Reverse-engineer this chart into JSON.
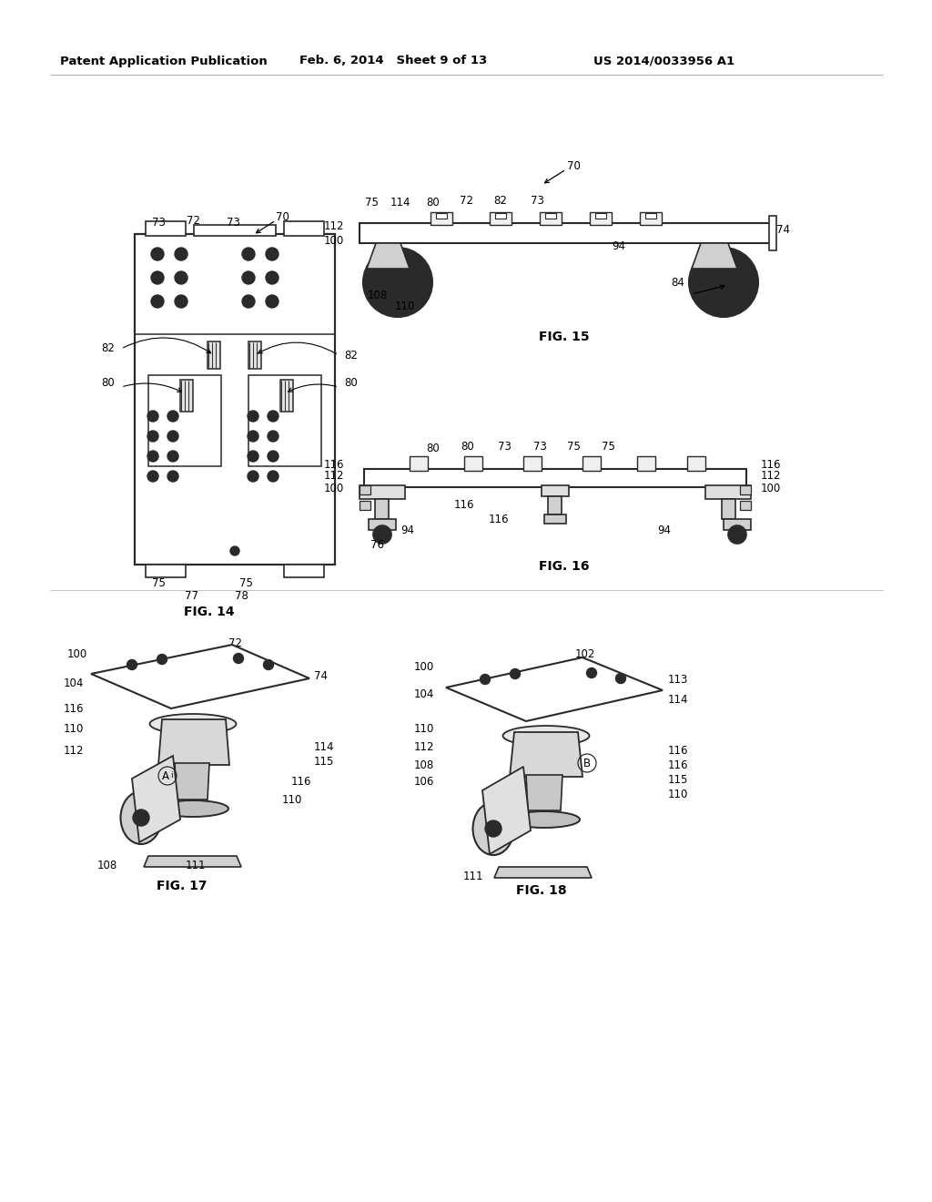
{
  "background_color": "#ffffff",
  "header_left": "Patent Application Publication",
  "header_mid": "Feb. 6, 2014   Sheet 9 of 13",
  "header_right": "US 2014/0033956 A1",
  "fig14_label": "FIG. 14",
  "fig15_label": "FIG. 15",
  "fig16_label": "FIG. 16",
  "fig17_label": "FIG. 17",
  "fig18_label": "FIG. 18",
  "line_color": "#2a2a2a",
  "text_color": "#000000",
  "lw_main": 1.4,
  "lw_thin": 0.9
}
